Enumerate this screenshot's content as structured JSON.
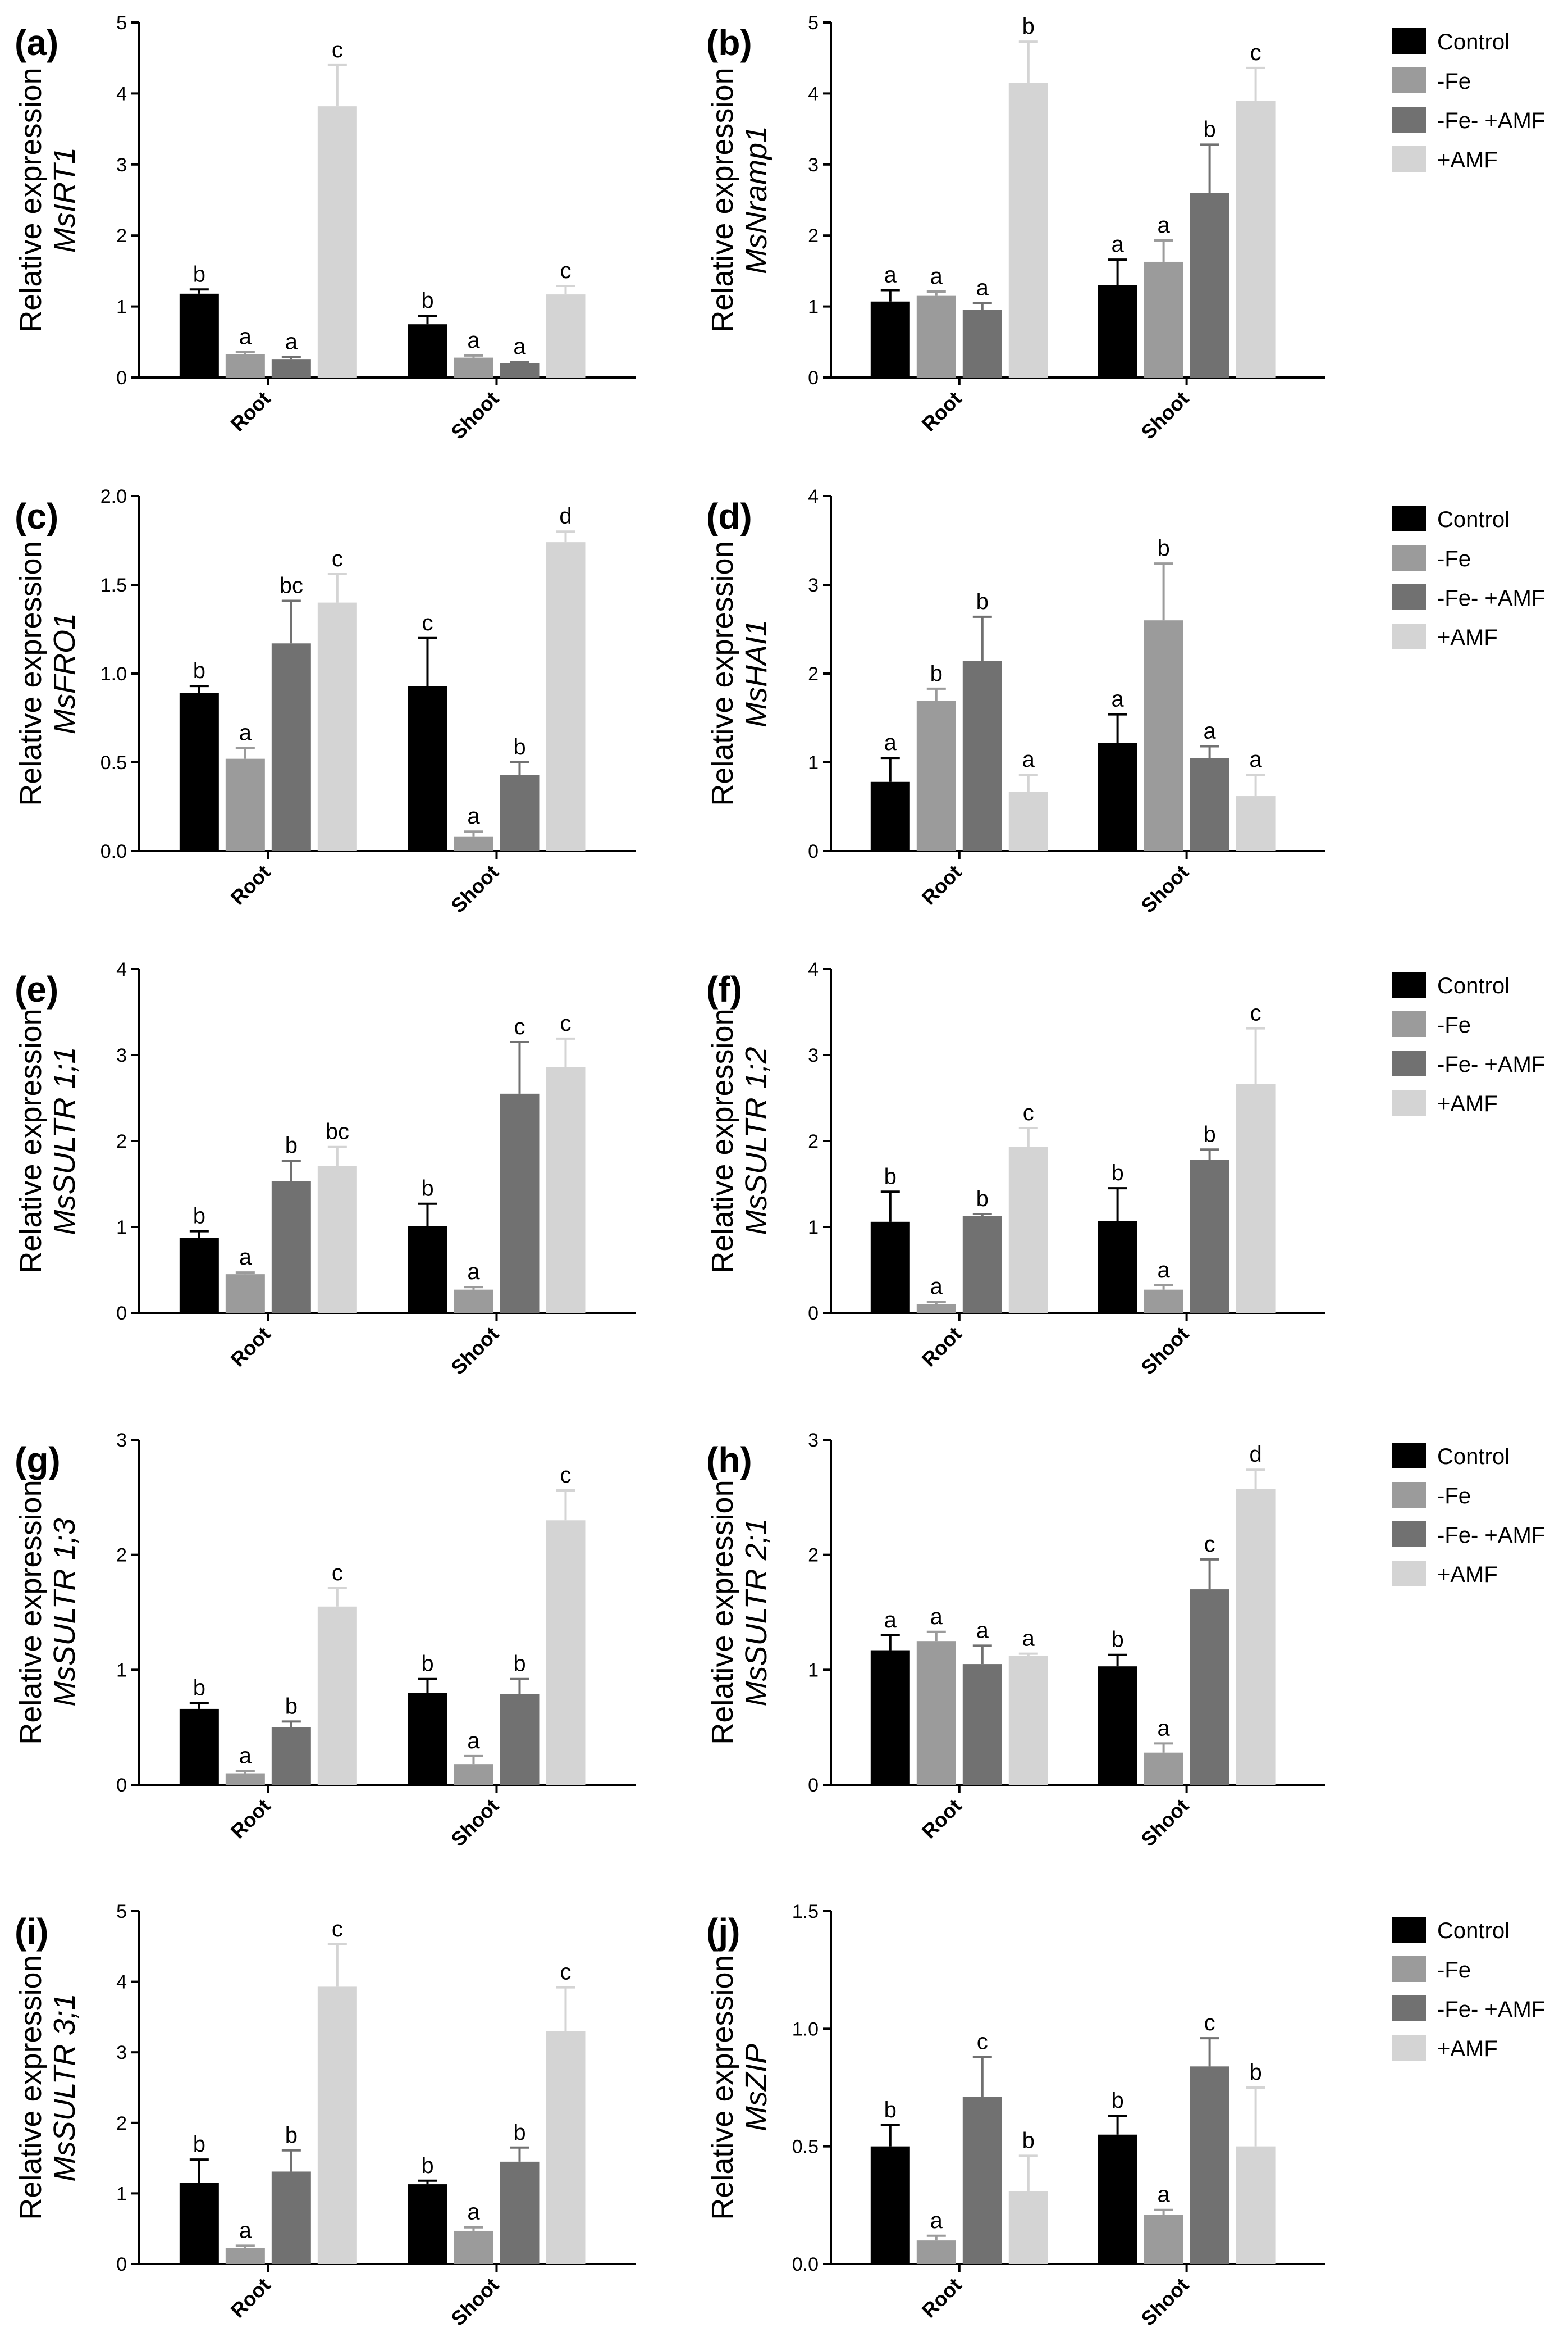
{
  "figure": {
    "legend_entries": [
      "Control",
      "-Fe",
      "-Fe- +AMF",
      "+AMF"
    ],
    "colors": {
      "Control": "#000000",
      "-Fe": "#9b9b9b",
      "-Fe- +AMF": "#717171",
      "+AMF": "#d4d4d4"
    },
    "ylabel_prefix": "Relative expression",
    "categories": [
      "Root",
      "Shoot"
    ]
  },
  "chart_data": [
    {
      "type": "bar",
      "panel": "(a)",
      "gene": "MsIRT1",
      "ylabel": "Relative expression",
      "categories": [
        "Root",
        "Shoot"
      ],
      "ylim": [
        0,
        5
      ],
      "yticks": [
        0,
        1,
        2,
        3,
        4,
        5
      ],
      "series": [
        {
          "name": "Control",
          "values": [
            1.18,
            0.75
          ],
          "errors": [
            0.06,
            0.12
          ],
          "letters": [
            "b",
            "b"
          ]
        },
        {
          "name": "-Fe",
          "values": [
            0.33,
            0.28
          ],
          "errors": [
            0.03,
            0.03
          ],
          "letters": [
            "a",
            "a"
          ]
        },
        {
          "name": "-Fe- +AMF",
          "values": [
            0.26,
            0.2
          ],
          "errors": [
            0.03,
            0.02
          ],
          "letters": [
            "a",
            "a"
          ]
        },
        {
          "name": "+AMF",
          "values": [
            3.82,
            1.17
          ],
          "errors": [
            0.58,
            0.12
          ],
          "letters": [
            "c",
            "c"
          ]
        }
      ]
    },
    {
      "type": "bar",
      "panel": "(b)",
      "gene": "MsNramp1",
      "ylabel": "Relative expression",
      "categories": [
        "Root",
        "Shoot"
      ],
      "ylim": [
        0,
        5
      ],
      "yticks": [
        0,
        1,
        2,
        3,
        4,
        5
      ],
      "series": [
        {
          "name": "Control",
          "values": [
            1.07,
            1.3
          ],
          "errors": [
            0.16,
            0.36
          ],
          "letters": [
            "a",
            "a"
          ]
        },
        {
          "name": "-Fe",
          "values": [
            1.15,
            1.63
          ],
          "errors": [
            0.06,
            0.3
          ],
          "letters": [
            "a",
            "a"
          ]
        },
        {
          "name": "-Fe- +AMF",
          "values": [
            0.95,
            2.6
          ],
          "errors": [
            0.1,
            0.68
          ],
          "letters": [
            "a",
            "b"
          ]
        },
        {
          "name": "+AMF",
          "values": [
            4.15,
            3.9
          ],
          "errors": [
            0.58,
            0.46
          ],
          "letters": [
            "b",
            "c"
          ]
        }
      ]
    },
    {
      "type": "bar",
      "panel": "(c)",
      "gene": "MsFRO1",
      "ylabel": "Relative expression",
      "categories": [
        "Root",
        "Shoot"
      ],
      "ylim": [
        0,
        2
      ],
      "yticks": [
        0,
        0.5,
        1,
        1.5,
        2
      ],
      "ytick_labels": [
        "0.0",
        "0.5",
        "1.0",
        "1.5",
        "2.0"
      ],
      "series": [
        {
          "name": "Control",
          "values": [
            0.89,
            0.93
          ],
          "errors": [
            0.04,
            0.27
          ],
          "letters": [
            "b",
            "c"
          ]
        },
        {
          "name": "-Fe",
          "values": [
            0.52,
            0.08
          ],
          "errors": [
            0.06,
            0.03
          ],
          "letters": [
            "a",
            "a"
          ]
        },
        {
          "name": "-Fe- +AMF",
          "values": [
            1.17,
            0.43
          ],
          "errors": [
            0.24,
            0.07
          ],
          "letters": [
            "bc",
            "b"
          ]
        },
        {
          "name": "+AMF",
          "values": [
            1.4,
            1.74
          ],
          "errors": [
            0.16,
            0.06
          ],
          "letters": [
            "c",
            "d"
          ]
        }
      ]
    },
    {
      "type": "bar",
      "panel": "(d)",
      "gene": "MsHAI1",
      "ylabel": "Relative expression",
      "categories": [
        "Root",
        "Shoot"
      ],
      "ylim": [
        0,
        4
      ],
      "yticks": [
        0,
        1,
        2,
        3,
        4
      ],
      "series": [
        {
          "name": "Control",
          "values": [
            0.78,
            1.22
          ],
          "errors": [
            0.27,
            0.32
          ],
          "letters": [
            "a",
            "a"
          ]
        },
        {
          "name": "-Fe",
          "values": [
            1.69,
            2.6
          ],
          "errors": [
            0.14,
            0.64
          ],
          "letters": [
            "b",
            "b"
          ]
        },
        {
          "name": "-Fe- +AMF",
          "values": [
            2.14,
            1.05
          ],
          "errors": [
            0.5,
            0.13
          ],
          "letters": [
            "b",
            "a"
          ]
        },
        {
          "name": "+AMF",
          "values": [
            0.67,
            0.62
          ],
          "errors": [
            0.19,
            0.24
          ],
          "letters": [
            "a",
            "a"
          ]
        }
      ]
    },
    {
      "type": "bar",
      "panel": "(e)",
      "gene": "MsSULTR 1;1",
      "ylabel": "Relative expression",
      "categories": [
        "Root",
        "Shoot"
      ],
      "ylim": [
        0,
        4
      ],
      "yticks": [
        0,
        1,
        2,
        3,
        4
      ],
      "series": [
        {
          "name": "Control",
          "values": [
            0.87,
            1.01
          ],
          "errors": [
            0.08,
            0.26
          ],
          "letters": [
            "b",
            "b"
          ]
        },
        {
          "name": "-Fe",
          "values": [
            0.45,
            0.27
          ],
          "errors": [
            0.02,
            0.03
          ],
          "letters": [
            "a",
            "a"
          ]
        },
        {
          "name": "-Fe- +AMF",
          "values": [
            1.53,
            2.55
          ],
          "errors": [
            0.24,
            0.6
          ],
          "letters": [
            "b",
            "c"
          ]
        },
        {
          "name": "+AMF",
          "values": [
            1.71,
            2.86
          ],
          "errors": [
            0.22,
            0.33
          ],
          "letters": [
            "bc",
            "c"
          ]
        }
      ]
    },
    {
      "type": "bar",
      "panel": "(f)",
      "gene": "MsSULTR 1;2",
      "ylabel": "Relative expression",
      "categories": [
        "Root",
        "Shoot"
      ],
      "ylim": [
        0,
        4
      ],
      "yticks": [
        0,
        1,
        2,
        3,
        4
      ],
      "series": [
        {
          "name": "Control",
          "values": [
            1.06,
            1.07
          ],
          "errors": [
            0.35,
            0.38
          ],
          "letters": [
            "b",
            "b"
          ]
        },
        {
          "name": "-Fe",
          "values": [
            0.1,
            0.27
          ],
          "errors": [
            0.03,
            0.05
          ],
          "letters": [
            "a",
            "a"
          ]
        },
        {
          "name": "-Fe- +AMF",
          "values": [
            1.13,
            1.78
          ],
          "errors": [
            0.02,
            0.12
          ],
          "letters": [
            "b",
            "b"
          ]
        },
        {
          "name": "+AMF",
          "values": [
            1.93,
            2.66
          ],
          "errors": [
            0.22,
            0.65
          ],
          "letters": [
            "c",
            "c"
          ]
        }
      ]
    },
    {
      "type": "bar",
      "panel": "(g)",
      "gene": "MsSULTR 1;3",
      "ylabel": "Relative expression",
      "categories": [
        "Root",
        "Shoot"
      ],
      "ylim": [
        0,
        3
      ],
      "yticks": [
        0,
        1,
        2,
        3
      ],
      "series": [
        {
          "name": "Control",
          "values": [
            0.66,
            0.8
          ],
          "errors": [
            0.05,
            0.12
          ],
          "letters": [
            "b",
            "b"
          ]
        },
        {
          "name": "-Fe",
          "values": [
            0.1,
            0.18
          ],
          "errors": [
            0.02,
            0.07
          ],
          "letters": [
            "a",
            "a"
          ]
        },
        {
          "name": "-Fe- +AMF",
          "values": [
            0.5,
            0.79
          ],
          "errors": [
            0.05,
            0.13
          ],
          "letters": [
            "b",
            "b"
          ]
        },
        {
          "name": "+AMF",
          "values": [
            1.55,
            2.3
          ],
          "errors": [
            0.16,
            0.26
          ],
          "letters": [
            "c",
            "c"
          ]
        }
      ]
    },
    {
      "type": "bar",
      "panel": "(h)",
      "gene": "MsSULTR 2;1",
      "ylabel": "Relative expression",
      "categories": [
        "Root",
        "Shoot"
      ],
      "ylim": [
        0,
        3
      ],
      "yticks": [
        0,
        1,
        2,
        3
      ],
      "series": [
        {
          "name": "Control",
          "values": [
            1.17,
            1.03
          ],
          "errors": [
            0.13,
            0.1
          ],
          "letters": [
            "a",
            "b"
          ]
        },
        {
          "name": "-Fe",
          "values": [
            1.25,
            0.28
          ],
          "errors": [
            0.08,
            0.08
          ],
          "letters": [
            "a",
            "a"
          ]
        },
        {
          "name": "-Fe- +AMF",
          "values": [
            1.05,
            1.7
          ],
          "errors": [
            0.16,
            0.26
          ],
          "letters": [
            "a",
            "c"
          ]
        },
        {
          "name": "+AMF",
          "values": [
            1.12,
            2.57
          ],
          "errors": [
            0.02,
            0.17
          ],
          "letters": [
            "a",
            "d"
          ]
        }
      ]
    },
    {
      "type": "bar",
      "panel": "(i)",
      "gene": "MsSULTR 3;1",
      "ylabel": "Relative expression",
      "categories": [
        "Root",
        "Shoot"
      ],
      "ylim": [
        0,
        5
      ],
      "yticks": [
        0,
        1,
        2,
        3,
        4,
        5
      ],
      "series": [
        {
          "name": "Control",
          "values": [
            1.15,
            1.13
          ],
          "errors": [
            0.33,
            0.05
          ],
          "letters": [
            "b",
            "b"
          ]
        },
        {
          "name": "-Fe",
          "values": [
            0.23,
            0.47
          ],
          "errors": [
            0.03,
            0.05
          ],
          "letters": [
            "a",
            "a"
          ]
        },
        {
          "name": "-Fe- +AMF",
          "values": [
            1.31,
            1.45
          ],
          "errors": [
            0.3,
            0.2
          ],
          "letters": [
            "b",
            "b"
          ]
        },
        {
          "name": "+AMF",
          "values": [
            3.93,
            3.3
          ],
          "errors": [
            0.6,
            0.62
          ],
          "letters": [
            "c",
            "c"
          ]
        }
      ]
    },
    {
      "type": "bar",
      "panel": "(j)",
      "gene": "MsZIP",
      "ylabel": "Relative expression",
      "categories": [
        "Root",
        "Shoot"
      ],
      "ylim": [
        0,
        1.5
      ],
      "yticks": [
        0,
        0.5,
        1,
        1.5
      ],
      "ytick_labels": [
        "0.0",
        "0.5",
        "1.0",
        "1.5"
      ],
      "series": [
        {
          "name": "Control",
          "values": [
            0.5,
            0.55
          ],
          "errors": [
            0.09,
            0.08
          ],
          "letters": [
            "b",
            "b"
          ]
        },
        {
          "name": "-Fe",
          "values": [
            0.1,
            0.21
          ],
          "errors": [
            0.02,
            0.02
          ],
          "letters": [
            "a",
            "a"
          ]
        },
        {
          "name": "-Fe- +AMF",
          "values": [
            0.71,
            0.84
          ],
          "errors": [
            0.17,
            0.12
          ],
          "letters": [
            "c",
            "c"
          ]
        },
        {
          "name": "+AMF",
          "values": [
            0.31,
            0.5
          ],
          "errors": [
            0.15,
            0.25
          ],
          "letters": [
            "b",
            "b"
          ]
        }
      ]
    }
  ]
}
